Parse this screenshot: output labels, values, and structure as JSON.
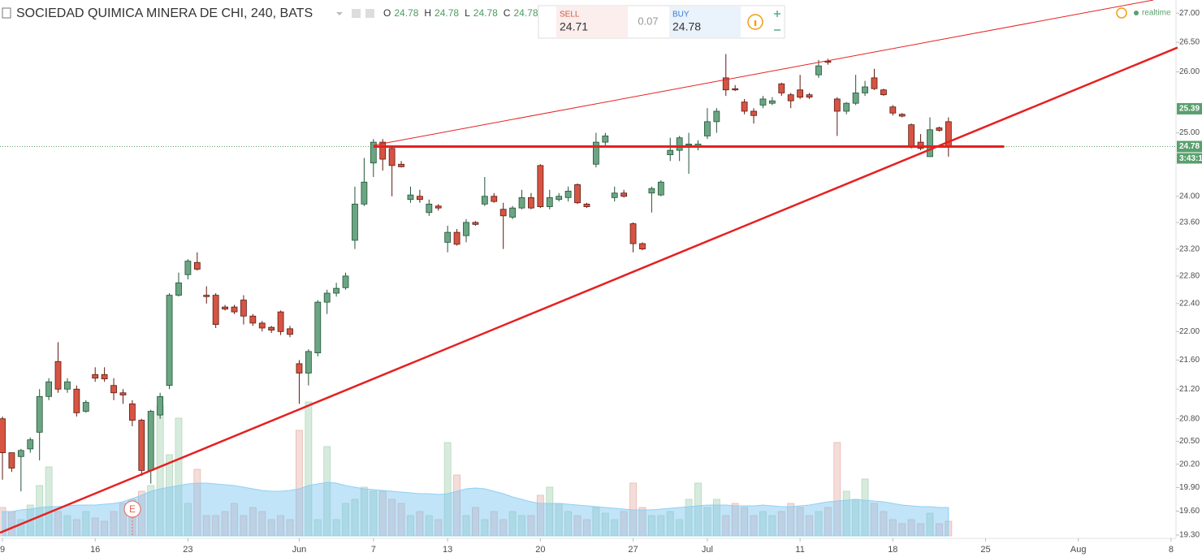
{
  "header": {
    "symbol_title": "SOCIEDAD QUIMICA MINERA DE CHI, 240, BATS",
    "ohlc": [
      {
        "label": "O",
        "value": 24.78
      },
      {
        "label": "H",
        "value": 24.78
      },
      {
        "label": "L",
        "value": 24.78
      },
      {
        "label": "C",
        "value": 24.78
      }
    ],
    "realtime": "realtime"
  },
  "trade_widget": {
    "sell_label": "SELL",
    "sell_price": 24.71,
    "spread": 0.07,
    "buy_label": "BUY",
    "buy_price": 24.78
  },
  "chart_data": {
    "type": "candlestick",
    "log": true,
    "grid": false,
    "up_color": "#6ba583",
    "down_color": "#d75442",
    "categories": [
      "9",
      null,
      null,
      null,
      null,
      null,
      null,
      null,
      null,
      null,
      "16",
      null,
      null,
      null,
      null,
      null,
      null,
      null,
      null,
      null,
      "23",
      null,
      null,
      null,
      null,
      null,
      null,
      null,
      null,
      null,
      null,
      null,
      "Jun",
      null,
      null,
      null,
      null,
      null,
      null,
      null,
      "7",
      null,
      null,
      null,
      null,
      null,
      null,
      null,
      "13",
      null,
      null,
      null,
      null,
      null,
      null,
      null,
      null,
      null,
      "20",
      null,
      null,
      null,
      null,
      null,
      null,
      null,
      null,
      null,
      "27",
      null,
      null,
      null,
      null,
      null,
      null,
      null,
      "Jul",
      null,
      null,
      null,
      null,
      null,
      null,
      null,
      null,
      null,
      "11",
      null,
      null,
      null,
      null,
      null,
      null,
      null,
      null,
      null,
      "18",
      null,
      null,
      null,
      null,
      null,
      null,
      null,
      null,
      null,
      "25",
      null,
      null,
      null,
      null,
      null,
      null,
      null,
      null,
      null,
      "Aug",
      null,
      null,
      null,
      null,
      null,
      null,
      null,
      null,
      null,
      "8"
    ],
    "open": [
      20.8,
      20.35,
      20.3,
      20.4,
      20.62,
      21.1,
      21.58,
      21.2,
      21.2,
      20.9,
      21.4,
      21.4,
      21.25,
      21.15,
      21.0,
      20.78,
      20.12,
      20.85,
      21.25,
      22.52,
      22.82,
      23.0,
      22.52,
      22.52,
      22.35,
      22.35,
      22.45,
      22.22,
      22.12,
      22.06,
      22.28,
      22.04,
      21.55,
      21.42,
      21.7,
      22.42,
      22.55,
      22.63,
      23.33,
      23.88,
      24.52,
      24.85,
      24.75,
      24.5,
      23.95,
      24.0,
      23.75,
      23.85,
      23.3,
      23.45,
      23.4,
      23.6,
      23.88,
      24.0,
      23.8,
      23.68,
      23.82,
      23.98,
      24.48,
      23.84,
      23.95,
      23.98,
      24.18,
      23.88,
      24.5,
      24.85,
      23.98,
      24.05,
      23.58,
      23.28,
      24.05,
      24.02,
      24.65,
      24.72,
      24.8,
      24.78,
      24.95,
      25.18,
      25.9,
      25.72,
      25.5,
      25.35,
      25.45,
      25.48,
      25.8,
      25.62,
      25.7,
      25.62,
      25.95,
      26.18,
      25.55,
      25.35,
      25.48,
      25.65,
      25.9,
      25.7,
      25.42,
      25.3,
      25.13,
      24.85,
      24.62,
      25.08,
      25.18,
      null,
      null,
      null,
      null,
      null,
      null,
      null,
      null,
      null,
      null,
      null,
      null,
      null,
      null,
      null,
      null,
      null,
      null,
      null,
      null,
      null,
      null,
      null,
      null
    ],
    "high": [
      20.83,
      20.35,
      20.4,
      20.55,
      21.2,
      21.35,
      21.85,
      21.35,
      21.25,
      21.05,
      21.5,
      21.5,
      21.35,
      21.2,
      21.05,
      20.8,
      20.92,
      21.15,
      22.55,
      22.85,
      23.05,
      23.15,
      22.65,
      22.55,
      22.38,
      22.38,
      22.52,
      22.25,
      22.15,
      22.08,
      22.3,
      22.08,
      21.6,
      21.75,
      22.45,
      22.6,
      22.7,
      22.85,
      24.15,
      24.6,
      24.9,
      24.9,
      24.8,
      24.55,
      24.15,
      24.1,
      23.95,
      23.88,
      23.55,
      23.5,
      23.65,
      23.62,
      24.3,
      24.05,
      23.9,
      23.85,
      24.1,
      24.05,
      24.5,
      24.1,
      24.05,
      24.15,
      24.2,
      23.9,
      25.0,
      25.0,
      24.15,
      24.1,
      23.6,
      23.3,
      24.15,
      24.25,
      24.92,
      24.95,
      25.0,
      24.88,
      25.4,
      25.4,
      26.3,
      25.78,
      25.55,
      25.4,
      25.6,
      25.58,
      25.82,
      25.65,
      25.95,
      25.65,
      26.2,
      26.22,
      25.58,
      25.5,
      25.95,
      25.85,
      26.05,
      25.72,
      25.45,
      25.32,
      25.15,
      24.98,
      25.25,
      25.1,
      25.25,
      null,
      null,
      null,
      null,
      null,
      null,
      null,
      null,
      null,
      null,
      null,
      null,
      null,
      null,
      null,
      null,
      null,
      null,
      null,
      null,
      null,
      null,
      null,
      null
    ],
    "low": [
      20.0,
      20.1,
      19.85,
      20.35,
      20.25,
      21.05,
      21.15,
      21.15,
      20.83,
      20.88,
      21.3,
      21.3,
      21.05,
      21.0,
      20.7,
      20.05,
      19.95,
      20.8,
      21.2,
      22.5,
      22.75,
      22.88,
      22.4,
      22.05,
      22.3,
      22.25,
      22.1,
      22.08,
      22.0,
      21.98,
      21.95,
      21.92,
      21.0,
      21.25,
      21.65,
      22.25,
      22.5,
      22.6,
      23.2,
      23.85,
      24.3,
      24.4,
      24.0,
      24.45,
      23.9,
      23.9,
      23.7,
      23.78,
      23.15,
      23.25,
      23.3,
      23.55,
      23.85,
      23.9,
      23.2,
      23.65,
      23.8,
      23.8,
      23.82,
      23.8,
      23.92,
      23.92,
      23.88,
      23.82,
      24.45,
      24.8,
      23.92,
      23.98,
      23.15,
      23.18,
      23.75,
      24.0,
      24.55,
      24.55,
      24.35,
      24.72,
      24.9,
      25.0,
      25.6,
      25.68,
      25.3,
      25.15,
      25.4,
      25.45,
      25.6,
      25.4,
      25.55,
      25.55,
      25.9,
      26.12,
      24.95,
      25.3,
      25.45,
      25.6,
      25.7,
      25.6,
      25.28,
      25.25,
      24.75,
      24.72,
      24.62,
      25.02,
      24.62,
      null,
      null,
      null,
      null,
      null,
      null,
      null,
      null,
      null,
      null,
      null,
      null,
      null,
      null,
      null,
      null,
      null,
      null,
      null,
      null,
      null,
      null,
      null,
      null
    ],
    "close": [
      20.35,
      20.15,
      20.38,
      20.52,
      21.1,
      21.3,
      21.2,
      21.3,
      20.88,
      21.02,
      21.35,
      21.34,
      21.15,
      21.12,
      20.78,
      20.12,
      20.9,
      21.1,
      22.52,
      22.7,
      23.02,
      22.9,
      22.5,
      22.1,
      22.32,
      22.28,
      22.22,
      22.12,
      22.05,
      22.02,
      22.0,
      21.96,
      21.42,
      21.72,
      22.42,
      22.55,
      22.62,
      22.8,
      23.88,
      24.22,
      24.85,
      24.58,
      24.48,
      24.46,
      24.02,
      23.95,
      23.88,
      23.82,
      23.45,
      23.27,
      23.6,
      23.57,
      24.0,
      23.92,
      23.7,
      23.82,
      23.98,
      23.82,
      23.84,
      23.98,
      24.0,
      24.08,
      23.9,
      23.84,
      24.85,
      24.95,
      24.05,
      24.0,
      23.28,
      23.2,
      24.12,
      24.22,
      24.72,
      24.92,
      24.82,
      24.82,
      25.18,
      25.35,
      25.7,
      25.7,
      25.35,
      25.28,
      25.55,
      25.52,
      25.65,
      25.52,
      25.58,
      25.58,
      26.1,
      26.16,
      25.35,
      25.48,
      25.65,
      25.75,
      25.72,
      25.62,
      25.32,
      25.27,
      24.78,
      24.75,
      25.05,
      25.04,
      24.78,
      null,
      null,
      null,
      null,
      null,
      null,
      null,
      null,
      null,
      null,
      null,
      null,
      null,
      null,
      null,
      null,
      null,
      null,
      null,
      null,
      null,
      null,
      null,
      null
    ],
    "volume_ylim": [
      0,
      200
    ],
    "volume": [
      35,
      30,
      20,
      38,
      62,
      85,
      30,
      25,
      20,
      30,
      22,
      18,
      30,
      40,
      45,
      55,
      62,
      160,
      100,
      145,
      40,
      82,
      25,
      25,
      30,
      40,
      25,
      35,
      30,
      20,
      25,
      20,
      130,
      165,
      20,
      110,
      20,
      40,
      45,
      60,
      55,
      55,
      45,
      40,
      25,
      30,
      25,
      20,
      115,
      75,
      25,
      35,
      20,
      30,
      20,
      30,
      25,
      25,
      50,
      60,
      40,
      30,
      25,
      20,
      35,
      28,
      20,
      30,
      65,
      35,
      25,
      25,
      30,
      20,
      45,
      65,
      35,
      45,
      25,
      40,
      35,
      25,
      30,
      25,
      30,
      40,
      35,
      25,
      30,
      35,
      115,
      55,
      45,
      70,
      40,
      30,
      20,
      15,
      20,
      15,
      28,
      15,
      18,
      null,
      null,
      null,
      null,
      null,
      null,
      null,
      null,
      null,
      null,
      null,
      null,
      null,
      null,
      null,
      null,
      null,
      null,
      null,
      null,
      null,
      null,
      null,
      null
    ],
    "volume_ma": [
      30,
      30,
      32,
      33,
      35,
      36,
      36,
      37,
      38,
      38,
      38,
      39,
      40,
      42,
      46,
      50,
      55,
      58,
      60,
      62,
      64,
      65,
      65,
      64,
      63,
      62,
      60,
      58,
      56,
      55,
      55,
      56,
      58,
      62,
      64,
      66,
      65,
      62,
      60,
      58,
      57,
      56,
      55,
      54,
      53,
      52,
      52,
      51,
      52,
      55,
      58,
      59,
      58,
      55,
      52,
      48,
      45,
      42,
      40,
      40,
      40,
      39,
      38,
      37,
      36,
      35,
      34,
      33,
      32,
      32,
      32,
      33,
      34,
      35,
      36,
      37,
      38,
      38,
      38,
      37,
      37,
      37,
      38,
      37,
      36,
      36,
      37,
      38,
      40,
      42,
      43,
      44,
      45,
      44,
      43,
      42,
      40,
      38,
      37,
      36,
      36,
      35,
      35,
      null,
      null,
      null,
      null,
      null,
      null,
      null,
      null,
      null,
      null,
      null,
      null,
      null,
      null,
      null,
      null,
      null,
      null,
      null,
      null,
      null,
      null,
      null,
      null
    ],
    "ylim": [
      19.29,
      27.23
    ],
    "yticks": [
      {
        "value": 19.3,
        "label": "19.30"
      },
      {
        "value": 19.6,
        "label": "19.60"
      },
      {
        "value": 19.9,
        "label": "19.90"
      },
      {
        "value": 20.2,
        "label": "20.20"
      },
      {
        "value": 20.5,
        "label": "20.50"
      },
      {
        "value": 20.8,
        "label": "20.80"
      },
      {
        "value": 21.2,
        "label": "21.20"
      },
      {
        "value": 21.6,
        "label": "21.60"
      },
      {
        "value": 22,
        "label": "22.00"
      },
      {
        "value": 22.4,
        "label": "22.40"
      },
      {
        "value": 22.8,
        "label": "22.80"
      },
      {
        "value": 23.2,
        "label": "23.20"
      },
      {
        "value": 23.6,
        "label": "23.60"
      },
      {
        "value": 24,
        "label": "24.00"
      },
      {
        "value": 25,
        "label": "25.00"
      },
      {
        "value": 26,
        "label": "26.00"
      },
      {
        "value": 26.5,
        "label": "26.50"
      },
      {
        "value": 27,
        "label": "27.00"
      }
    ],
    "drawings": [
      {
        "color": "#e52121",
        "width": 3,
        "points": [
          [
            40,
            24.78
          ],
          [
            108,
            24.78
          ]
        ]
      },
      {
        "color": "#e52121",
        "width": 1,
        "points": [
          [
            40,
            24.8
          ],
          [
            124.1,
            27.23
          ]
        ]
      },
      {
        "color": "#e52121",
        "width": 2.5,
        "points": [
          [
            -0.26,
            19.33
          ],
          [
            126.7,
            26.41
          ]
        ]
      }
    ],
    "last_price_line": 24.78,
    "price_labels": [
      {
        "value": 25.39,
        "label": "25.39",
        "color": "#5aa06e"
      },
      {
        "value": 24.78,
        "label": "24.78",
        "color": "#5aa06e"
      }
    ],
    "countdown": "3:43:1",
    "earnings_marker": "E"
  }
}
